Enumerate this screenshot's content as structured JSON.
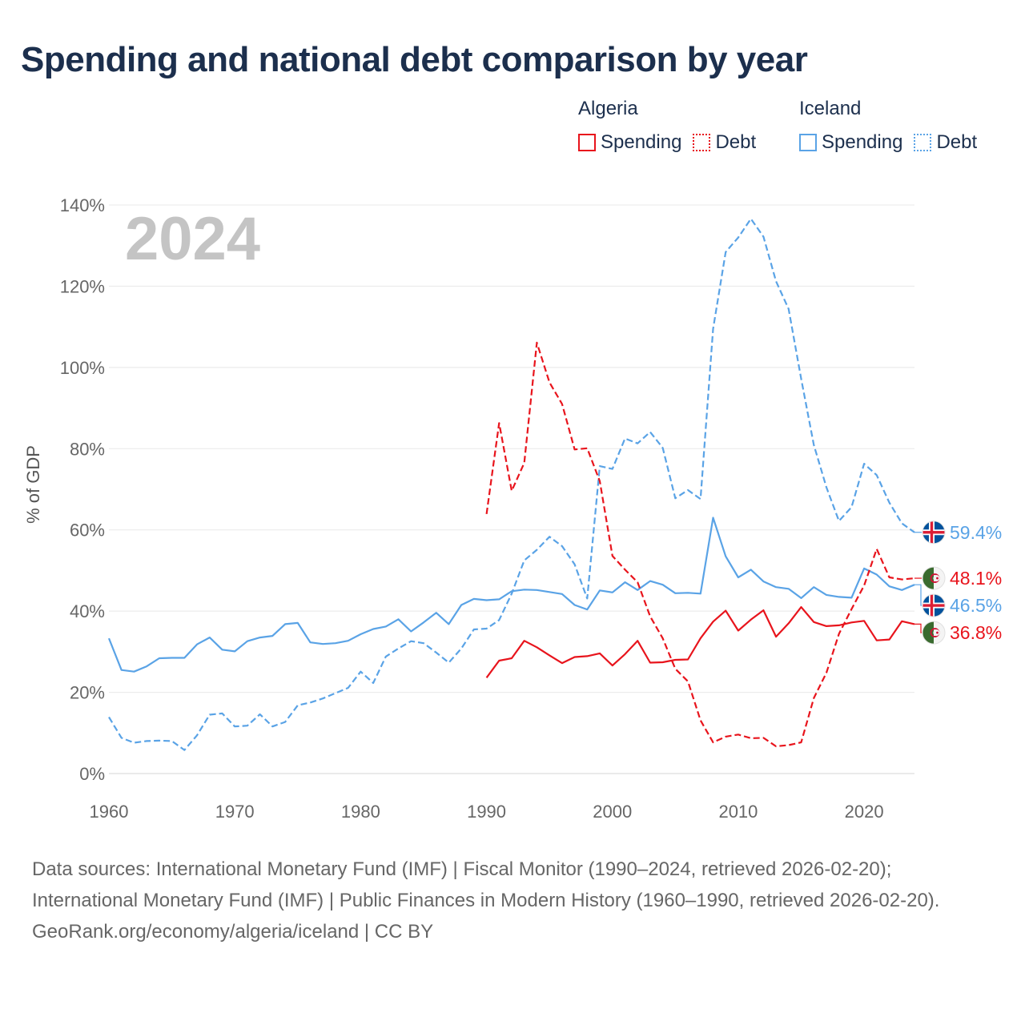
{
  "title": "Spending and national debt comparison by year",
  "legend": {
    "groups": [
      {
        "name": "Algeria",
        "items": [
          {
            "label": "Spending",
            "style": "solid",
            "color": "#e8141c"
          },
          {
            "label": "Debt",
            "style": "dotted",
            "color": "#e8141c"
          }
        ]
      },
      {
        "name": "Iceland",
        "items": [
          {
            "label": "Spending",
            "style": "solid",
            "color": "#5aa3e6"
          },
          {
            "label": "Debt",
            "style": "dotted",
            "color": "#5aa3e6"
          }
        ]
      }
    ]
  },
  "footer": {
    "sources": "Data sources: International Monetary Fund (IMF) | Fiscal Monitor (1990–2024, retrieved 2026-02-20); International Monetary Fund (IMF) | Public Finances in Modern History (1960–1990, retrieved 2026-02-20).",
    "credit": "GeoRank.org/economy/algeria/iceland | CC BY"
  },
  "chart_data": {
    "type": "line",
    "title": "Spending and national debt comparison by year",
    "year_overlay": "2024",
    "xlabel": "",
    "ylabel": "% of GDP",
    "xlim": [
      1960,
      2024
    ],
    "ylim": [
      0,
      140
    ],
    "x_ticks": [
      1960,
      1970,
      1980,
      1990,
      2000,
      2010,
      2020
    ],
    "y_ticks": [
      0,
      20,
      40,
      60,
      80,
      100,
      120,
      140
    ],
    "y_tick_labels": [
      "0%",
      "20%",
      "40%",
      "60%",
      "80%",
      "100%",
      "120%",
      "140%"
    ],
    "grid": true,
    "series": [
      {
        "name": "Iceland Debt",
        "country": "Iceland",
        "metric": "Debt",
        "color": "#5aa3e6",
        "dash": true,
        "start": 1960,
        "values": [
          13.9,
          8.8,
          7.6,
          8.0,
          8.1,
          8.0,
          5.8,
          9.4,
          14.5,
          14.8,
          11.6,
          11.8,
          14.6,
          11.6,
          12.7,
          16.8,
          17.5,
          18.5,
          19.8,
          21.1,
          25.1,
          22.3,
          28.8,
          30.8,
          32.6,
          32.1,
          29.8,
          27.3,
          30.8,
          35.5,
          35.7,
          37.8,
          44.3,
          52.5,
          55.1,
          58.3,
          56.0,
          51.5,
          43.1,
          75.7,
          75.0,
          82.5,
          81.3,
          84.1,
          80.2,
          67.8,
          69.8,
          67.6,
          109.5,
          128.4,
          132.0,
          136.6,
          132.2,
          121.2,
          114.4,
          97.2,
          80.9,
          70.5,
          62.2,
          65.6,
          76.3,
          73.5,
          66.7,
          61.6,
          59.4
        ]
      },
      {
        "name": "Iceland Spending",
        "country": "Iceland",
        "metric": "Spending",
        "color": "#5aa3e6",
        "dash": false,
        "start": 1960,
        "values": [
          33.3,
          25.5,
          25.1,
          26.4,
          28.4,
          28.5,
          28.5,
          31.8,
          33.5,
          30.5,
          30.1,
          32.6,
          33.5,
          33.9,
          36.8,
          37.1,
          32.3,
          31.9,
          32.1,
          32.7,
          34.3,
          35.6,
          36.2,
          38.0,
          35.0,
          37.2,
          39.6,
          36.8,
          41.5,
          43.0,
          42.7,
          42.9,
          44.9,
          45.3,
          45.2,
          44.7,
          44.2,
          41.5,
          40.4,
          45.1,
          44.6,
          47.1,
          45.2,
          47.4,
          46.5,
          44.4,
          44.5,
          44.3,
          63.0,
          53.5,
          48.3,
          50.2,
          47.3,
          45.9,
          45.5,
          43.2,
          45.9,
          44.0,
          43.5,
          43.3,
          50.5,
          49.0,
          46.1,
          45.2,
          46.5
        ]
      },
      {
        "name": "Algeria Debt",
        "country": "Algeria",
        "metric": "Debt",
        "color": "#e8141c",
        "dash": true,
        "start": 1990,
        "values": [
          63.9,
          86.3,
          69.6,
          76.5,
          106.1,
          96.3,
          91.0,
          79.8,
          80.1,
          72.0,
          53.6,
          50.2,
          47.1,
          38.7,
          33.3,
          25.8,
          22.7,
          13.1,
          7.7,
          9.1,
          9.6,
          8.7,
          8.8,
          6.7,
          7.0,
          7.7,
          18.6,
          24.8,
          34.4,
          40.5,
          46.3,
          55.3,
          48.3,
          47.8,
          48.1
        ]
      },
      {
        "name": "Algeria Spending",
        "country": "Algeria",
        "metric": "Spending",
        "color": "#e8141c",
        "dash": false,
        "start": 1990,
        "values": [
          23.6,
          27.8,
          28.4,
          32.7,
          31.1,
          29.1,
          27.2,
          28.7,
          28.9,
          29.6,
          26.6,
          29.4,
          32.7,
          27.3,
          27.4,
          28.0,
          28.1,
          33.3,
          37.4,
          40.1,
          35.2,
          37.9,
          40.2,
          33.7,
          37.0,
          41.0,
          37.3,
          36.3,
          36.5,
          37.2,
          37.6,
          32.8,
          33.0,
          37.5,
          36.8
        ]
      }
    ],
    "end_labels": [
      {
        "text": "59.4%",
        "country": "Iceland",
        "value": 59.4,
        "color": "#5aa3e6"
      },
      {
        "text": "48.1%",
        "country": "Algeria",
        "value": 48.1,
        "color": "#e8141c"
      },
      {
        "text": "46.5%",
        "country": "Iceland",
        "value": 46.5,
        "color": "#5aa3e6"
      },
      {
        "text": "36.8%",
        "country": "Algeria",
        "value": 36.8,
        "color": "#e8141c"
      }
    ]
  }
}
